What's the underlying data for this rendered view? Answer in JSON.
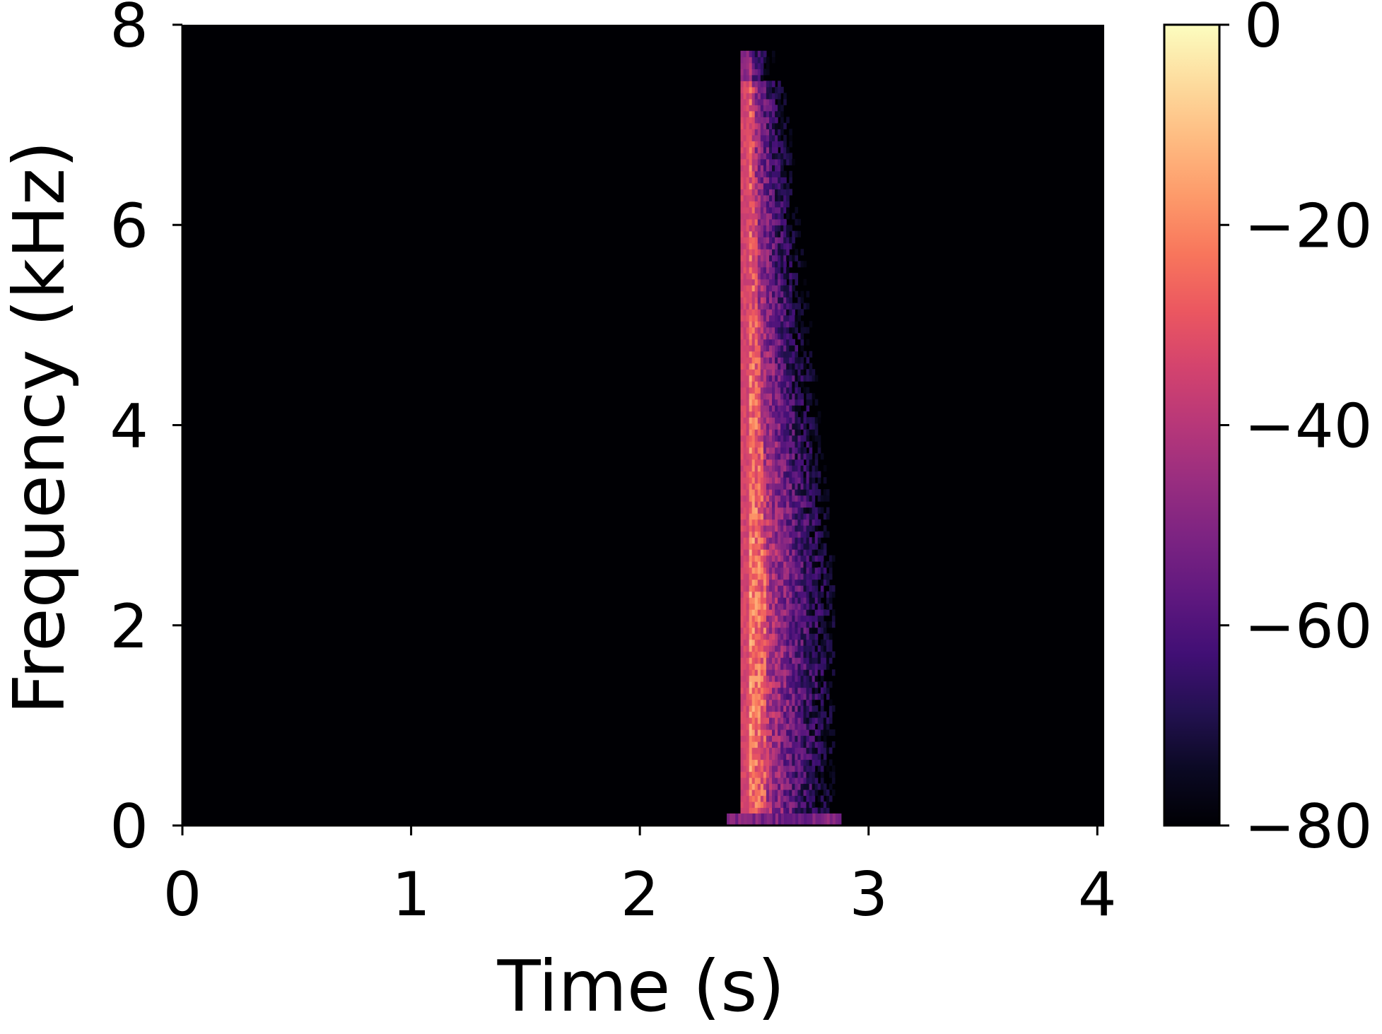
{
  "chart_data": {
    "type": "heatmap",
    "title": "",
    "xlabel": "Time (s)",
    "ylabel": "Frequency (kHz)",
    "xlim": [
      0,
      4.03
    ],
    "ylim": [
      0,
      8
    ],
    "x_ticks": [
      0,
      1,
      2,
      3,
      4
    ],
    "x_tick_labels": [
      "0",
      "1",
      "2",
      "3",
      "4"
    ],
    "y_ticks": [
      0,
      2,
      4,
      6,
      8
    ],
    "y_tick_labels": [
      "0",
      "2",
      "4",
      "6",
      "8"
    ],
    "colormap": "magma",
    "grid": false,
    "colorbar": {
      "label": "",
      "range": [
        -80,
        0
      ],
      "ticks": [
        0,
        -20,
        -40,
        -60,
        -80
      ],
      "tick_labels": [
        "0",
        "−20",
        "−40",
        "−60",
        "−80"
      ]
    },
    "background_level_db": -80,
    "events": [
      {
        "name": "",
        "onset_s": 2.44,
        "peak_region_s": [
          2.44,
          2.6
        ],
        "tail_end_s": 2.85,
        "freq_range_khz": [
          0,
          7.7
        ],
        "peak_db": -12,
        "strongest_freq_khz": 2.2,
        "low_freq_band": {
          "time_s": [
            2.38,
            2.88
          ],
          "freq_khz": [
            0,
            0.12
          ],
          "level_db": -45
        }
      }
    ]
  },
  "colors": {
    "background": "#000004",
    "magma": [
      "#000004",
      "#0b0924",
      "#231151",
      "#410f75",
      "#5f187f",
      "#7b2382",
      "#982d80",
      "#b73779",
      "#d3436e",
      "#eb5760",
      "#f8765c",
      "#fd9a6a",
      "#febb81",
      "#fddc9e",
      "#fcfdbf"
    ]
  }
}
